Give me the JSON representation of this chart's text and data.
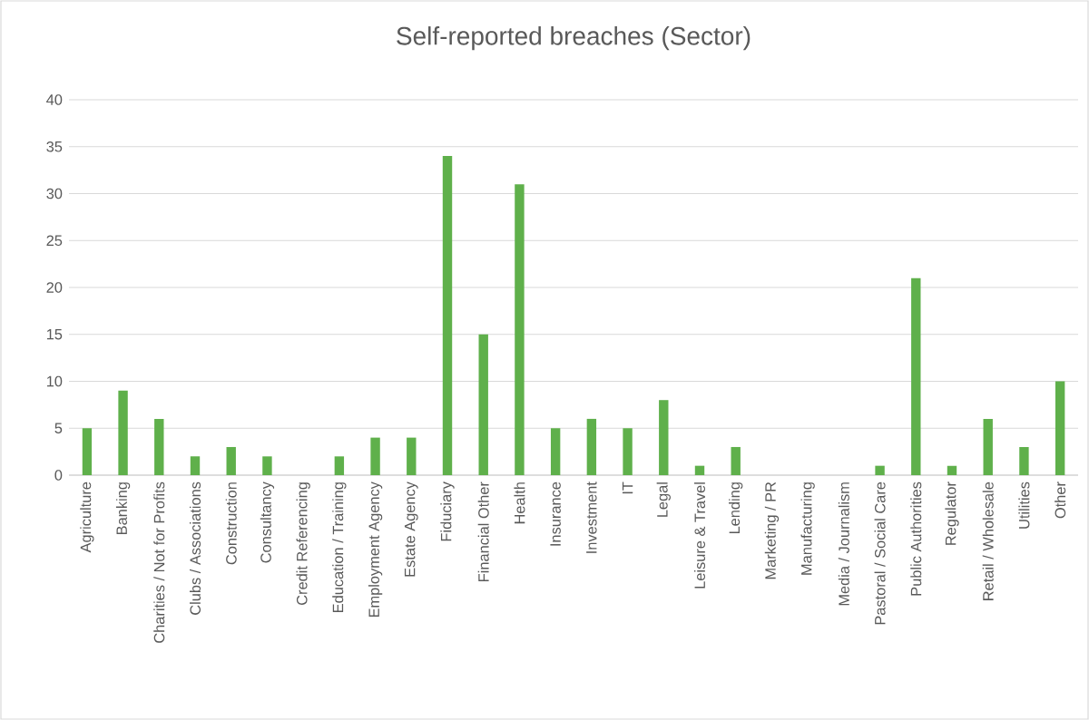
{
  "chart_data": {
    "type": "bar",
    "title": "Self-reported breaches (Sector)",
    "categories": [
      "Agriculture",
      "Banking",
      "Charities / Not for Profits",
      "Clubs / Associations",
      "Construction",
      "Consultancy",
      "Credit Referencing",
      "Education / Training",
      "Employment Agency",
      "Estate Agency",
      "Fiduciary",
      "Financial Other",
      "Health",
      "Insurance",
      "Investment",
      "IT",
      "Legal",
      "Leisure & Travel",
      "Lending",
      "Marketing / PR",
      "Manufacturing",
      "Media / Journalism",
      "Pastoral / Social Care",
      "Public Authorities",
      "Regulator",
      "Retail / Wholesale",
      "Utilities",
      "Other"
    ],
    "values": [
      5,
      9,
      6,
      2,
      3,
      2,
      0,
      2,
      4,
      4,
      34,
      15,
      31,
      5,
      6,
      5,
      8,
      1,
      3,
      0,
      0,
      0,
      1,
      21,
      1,
      6,
      3,
      10
    ],
    "color": "#5fb04b",
    "ylim": [
      0,
      40
    ],
    "yticks": [
      0,
      5,
      10,
      15,
      20,
      25,
      30,
      35,
      40
    ],
    "grid": "y"
  }
}
